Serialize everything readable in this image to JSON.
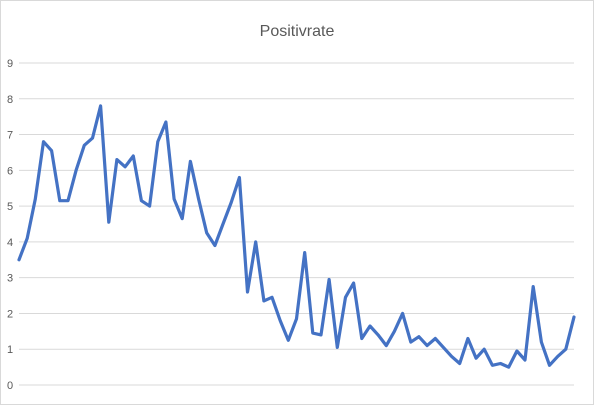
{
  "chart_data": {
    "type": "line",
    "title": "Positivrate",
    "xlabel": "",
    "ylabel": "",
    "ylim": [
      0,
      9
    ],
    "yticks": [
      0,
      1,
      2,
      3,
      4,
      5,
      6,
      7,
      8,
      9
    ],
    "grid": "horizontal",
    "legend": "none",
    "series": [
      {
        "color": "#4472c4",
        "values": [
          3.5,
          4.1,
          5.2,
          6.8,
          6.55,
          5.15,
          5.15,
          6.0,
          6.7,
          6.9,
          7.8,
          4.55,
          6.3,
          6.1,
          6.4,
          5.15,
          5.0,
          6.8,
          7.35,
          5.2,
          4.65,
          6.25,
          5.2,
          4.25,
          3.9,
          4.5,
          5.1,
          5.8,
          2.6,
          4.0,
          2.35,
          2.45,
          1.8,
          1.25,
          1.85,
          3.7,
          1.45,
          1.4,
          2.95,
          1.05,
          2.45,
          2.85,
          1.3,
          1.65,
          1.4,
          1.1,
          1.5,
          2.0,
          1.2,
          1.35,
          1.1,
          1.3,
          1.05,
          0.8,
          0.6,
          1.3,
          0.75,
          1.0,
          0.55,
          0.6,
          0.5,
          0.95,
          0.7,
          2.75,
          1.2,
          0.55,
          0.8,
          1.0,
          1.9
        ]
      }
    ]
  }
}
